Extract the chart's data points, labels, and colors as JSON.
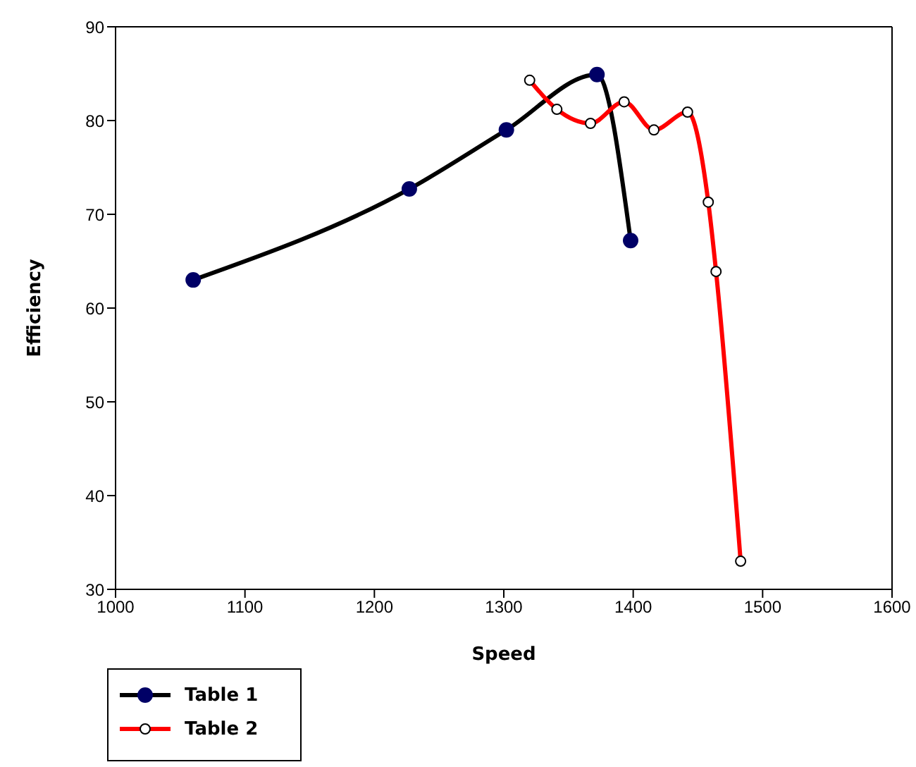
{
  "chart_data": {
    "type": "line",
    "xlabel": "Speed",
    "ylabel": "Efficiency",
    "xlim": [
      1000,
      1600
    ],
    "xticks": [
      1000,
      1100,
      1200,
      1300,
      1400,
      1500,
      1600
    ],
    "ylim": [
      30,
      90
    ],
    "yticks": [
      30,
      40,
      50,
      60,
      70,
      80,
      90
    ],
    "grid": false,
    "legend": "bottom left",
    "marker": "circle",
    "series": [
      {
        "name": "Table 1",
        "color": "#000000",
        "x": [
          1060,
          1227,
          1302,
          1372,
          1398
        ],
        "values": [
          63.0,
          72.7,
          79.0,
          84.9,
          67.2
        ]
      },
      {
        "name": "Table 2",
        "color": "#ff0000",
        "x": [
          1320,
          1341,
          1367,
          1393,
          1416,
          1442,
          1458,
          1464,
          1483
        ],
        "values": [
          84.3,
          81.2,
          79.7,
          82.0,
          79.0,
          80.9,
          71.3,
          63.9,
          33.0
        ]
      }
    ]
  }
}
